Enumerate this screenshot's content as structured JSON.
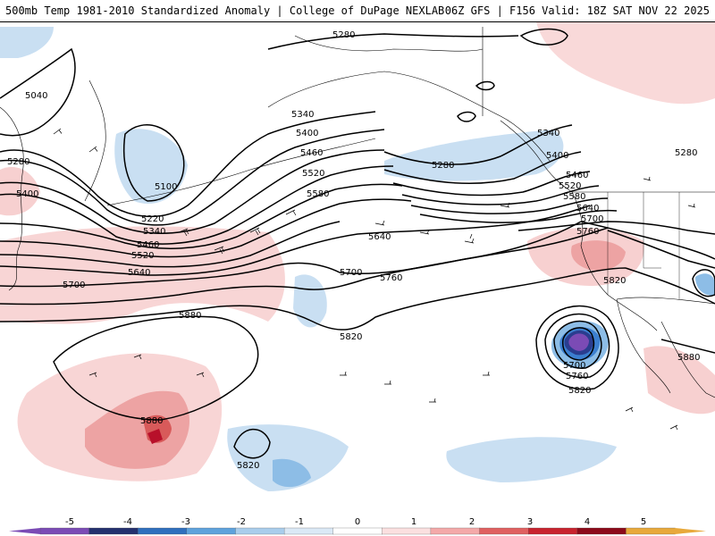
{
  "header": {
    "title": "500mb Temp 1981-2010 Standardized Anomaly | College of DuPage NEXLAB",
    "run_info": "06Z GFS | F156 Valid: 18Z SAT NOV 22 2025"
  },
  "contour_labels": [
    "5280",
    "5040",
    "5280",
    "5400",
    "5100",
    "5220",
    "5340",
    "5460",
    "5520",
    "5640",
    "5700",
    "5340",
    "5400",
    "5460",
    "5520",
    "5580",
    "5640",
    "5700",
    "5760",
    "5820",
    "5280",
    "5340",
    "5400",
    "5460",
    "5520",
    "5580",
    "5640",
    "5700",
    "5760",
    "5820",
    "5280",
    "5880",
    "5880",
    "5820",
    "5700",
    "5760",
    "5820",
    "5880"
  ],
  "colorbar": {
    "ticks": [
      "-5",
      "-4",
      "-3",
      "-2",
      "-1",
      "0",
      "1",
      "2",
      "3",
      "4",
      "5"
    ],
    "colors": [
      "#7b4bb5",
      "#24306e",
      "#2f6fbd",
      "#5ea2dc",
      "#a9cdec",
      "#dbe9f6",
      "#ffffff",
      "#fbe0e0",
      "#f4a9a9",
      "#e06060",
      "#c8232e",
      "#8c0a1a",
      "#e8a93b"
    ]
  },
  "anomaly_colors": {
    "light_red": "#f7d0d0",
    "mid_red": "#eda3a3",
    "dark_red": "#d85a5a",
    "deep_red": "#b8102a",
    "light_blue": "#c9dff2",
    "mid_blue": "#8dbde6",
    "dark_blue": "#3c7fcf",
    "deep_blue": "#2a3d8f",
    "purple": "#7b4bb5"
  }
}
